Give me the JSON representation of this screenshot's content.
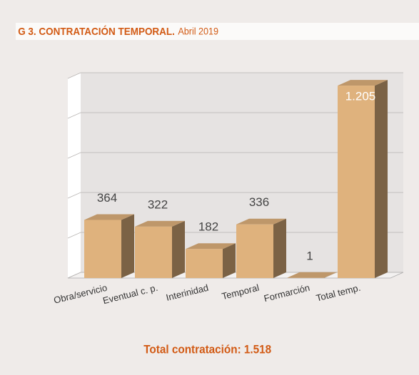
{
  "chart_data": {
    "type": "bar3d",
    "title": "G 3. CONTRATACIÓN TEMPORAL.",
    "subtitle": "Abril 2019",
    "footer": "Total contratación: 1.518",
    "categories": [
      "Obra/servicio",
      "Eventual c. p.",
      "Interinidad",
      "Temporal",
      "Formarción",
      "Total temp."
    ],
    "values": [
      364,
      322,
      182,
      336,
      1,
      1205
    ],
    "value_labels": [
      "364",
      "322",
      "182",
      "336",
      "1",
      "1.205"
    ],
    "color": "#dfb27d",
    "ylim": [
      0,
      1250
    ],
    "yticks": [
      0,
      250,
      500,
      750,
      1000,
      1250
    ],
    "grid": true
  }
}
